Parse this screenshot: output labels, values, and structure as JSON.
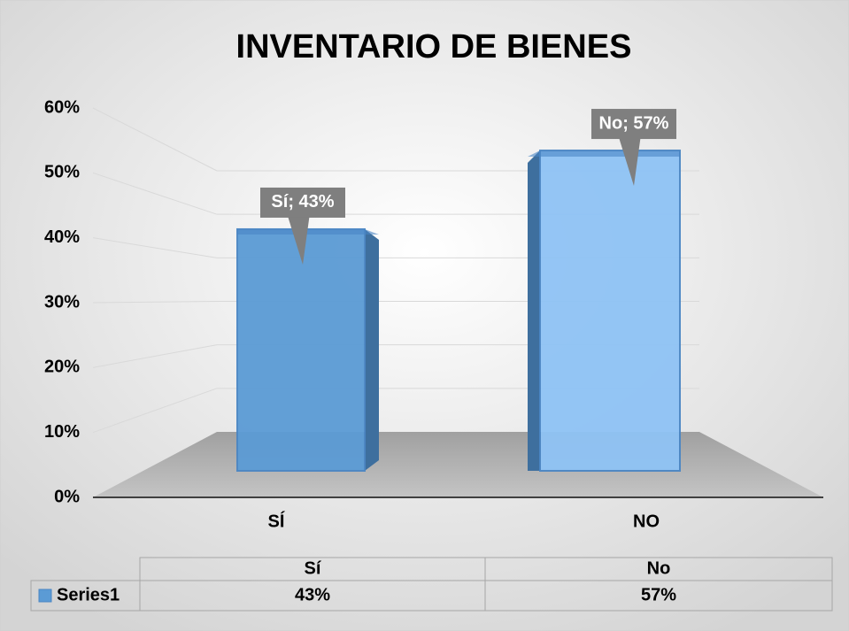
{
  "chart_data": {
    "type": "bar",
    "title": "INVENTARIO DE BIENES",
    "categories": [
      "SÍ",
      "NO"
    ],
    "series": [
      {
        "name": "Series1",
        "color": "#5b9bd5",
        "values": [
          43,
          57
        ],
        "value_labels": [
          "Sí; 43%",
          "No; 57%"
        ]
      }
    ],
    "ylim": [
      0,
      60
    ],
    "yticks": [
      {
        "value": 0,
        "label": "0%"
      },
      {
        "value": 10,
        "label": "10%"
      },
      {
        "value": 20,
        "label": "20%"
      },
      {
        "value": 30,
        "label": "30%"
      },
      {
        "value": 40,
        "label": "40%"
      },
      {
        "value": 50,
        "label": "50%"
      },
      {
        "value": 60,
        "label": "60%"
      }
    ],
    "grid": true,
    "data_table": {
      "header": [
        "Sí",
        "No"
      ],
      "value_labels": [
        "43%",
        "57%"
      ]
    }
  }
}
